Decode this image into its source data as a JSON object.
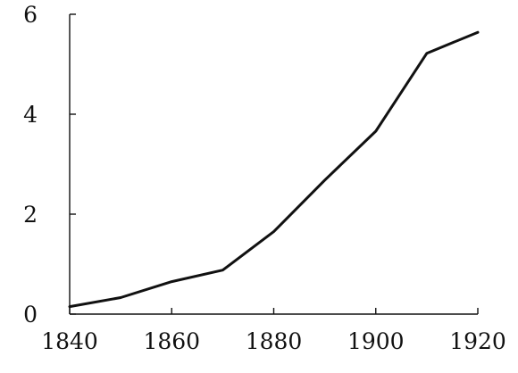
{
  "chart_data": {
    "type": "line",
    "title": "",
    "xlabel": "",
    "ylabel": "",
    "xlim": [
      1840,
      1920
    ],
    "ylim": [
      0,
      6
    ],
    "x_ticks": [
      1840,
      1860,
      1880,
      1900,
      1920
    ],
    "y_ticks": [
      0,
      2,
      4,
      6
    ],
    "x_tick_labels": [
      "1840",
      "1860",
      "1880",
      "1900",
      "1920"
    ],
    "y_tick_labels": [
      "0",
      "2",
      "4",
      "6"
    ],
    "grid": false,
    "legend": "none",
    "line_color": "#111111",
    "series": [
      {
        "x": [
          1840,
          1850,
          1860,
          1870,
          1880,
          1890,
          1900,
          1910,
          1920
        ],
        "values": [
          0.15,
          0.33,
          0.65,
          0.88,
          1.65,
          2.68,
          3.66,
          5.22,
          5.64
        ]
      }
    ]
  }
}
